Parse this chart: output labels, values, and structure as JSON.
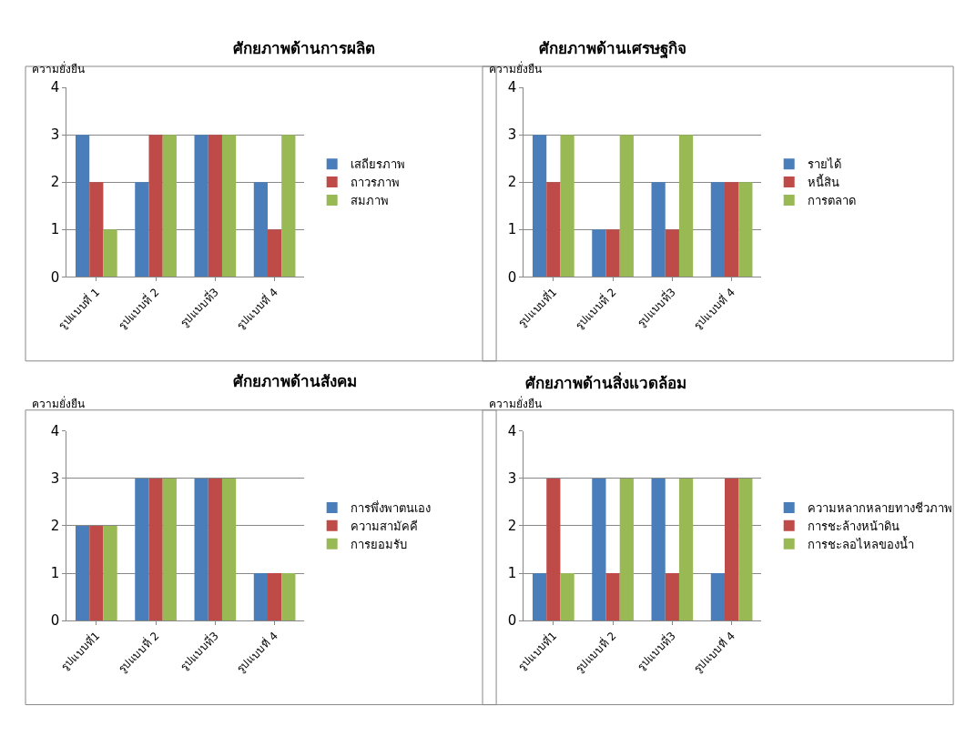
{
  "chart_data": [
    {
      "type": "bar",
      "title": "ศักยภาพด้านการผลิต",
      "ylabel": "ความยั่งยืน",
      "categories": [
        "รูปแบบที่ 1",
        "รูปแบบที่ 2",
        "รูปแบบที่3",
        "รูปแบบที่ 4"
      ],
      "ylim": [
        0,
        4
      ],
      "yticks": [
        0,
        1,
        2,
        3,
        4
      ],
      "grid": "y",
      "legend": "right",
      "series": [
        {
          "name": "เสถียรภาพ",
          "color": "#4a7ebb",
          "values": [
            3,
            2,
            3,
            2
          ]
        },
        {
          "name": "ถาวรภาพ",
          "color": "#be4b48",
          "values": [
            2,
            3,
            3,
            1
          ]
        },
        {
          "name": "สมภาพ",
          "color": "#98b954",
          "values": [
            1,
            3,
            3,
            3
          ]
        }
      ]
    },
    {
      "type": "bar",
      "title": "ศักยภาพด้านเศรษฐกิจ",
      "ylabel": "ความยั่งยืน",
      "categories": [
        "รูปแบบที่1",
        "รูปแบบที่ 2",
        "รูปแบบที่3",
        "รูปแบบที่ 4"
      ],
      "ylim": [
        0,
        4
      ],
      "yticks": [
        0,
        1,
        2,
        3,
        4
      ],
      "grid": "y",
      "legend": "right",
      "series": [
        {
          "name": "รายได้",
          "color": "#4a7ebb",
          "values": [
            3,
            1,
            2,
            2
          ]
        },
        {
          "name": "หนี้สิน",
          "color": "#be4b48",
          "values": [
            2,
            1,
            1,
            2
          ]
        },
        {
          "name": "การตลาด",
          "color": "#98b954",
          "values": [
            3,
            3,
            3,
            2
          ]
        }
      ]
    },
    {
      "type": "bar",
      "title": "ศักยภาพด้านสังคม",
      "ylabel": "ความยั่งยืน",
      "categories": [
        "รูปแบบที่1",
        "รูปแบบที่ 2",
        "รูปแบบที่3",
        "รูปแบบที่ 4"
      ],
      "ylim": [
        0,
        4
      ],
      "yticks": [
        0,
        1,
        2,
        3,
        4
      ],
      "grid": "y",
      "legend": "right",
      "series": [
        {
          "name": "การพึ่งพาตนเอง",
          "color": "#4a7ebb",
          "values": [
            2,
            3,
            3,
            1
          ]
        },
        {
          "name": "ความสามัคคี",
          "color": "#be4b48",
          "values": [
            2,
            3,
            3,
            1
          ]
        },
        {
          "name": "การยอมรับ",
          "color": "#98b954",
          "values": [
            2,
            3,
            3,
            1
          ]
        }
      ]
    },
    {
      "type": "bar",
      "title": "ศักยภาพด้านสิ่งแวดล้อม",
      "ylabel": "ความยั่งยืน",
      "categories": [
        "รูปแบบที่1",
        "รูปแบบที่ 2",
        "รูปแบบที่3",
        "รูปแบบที่ 4"
      ],
      "ylim": [
        0,
        4
      ],
      "yticks": [
        0,
        1,
        2,
        3,
        4
      ],
      "grid": "y",
      "legend": "right",
      "series": [
        {
          "name": "ความหลากหลายทางชีวภาพ",
          "color": "#4a7ebb",
          "values": [
            1,
            3,
            3,
            1
          ]
        },
        {
          "name": "การชะล้างหน้าดิน",
          "color": "#be4b48",
          "values": [
            3,
            1,
            1,
            3
          ]
        },
        {
          "name": "การชะลอไหลของน้ำ",
          "color": "#98b954",
          "values": [
            1,
            3,
            3,
            3
          ]
        }
      ]
    }
  ]
}
